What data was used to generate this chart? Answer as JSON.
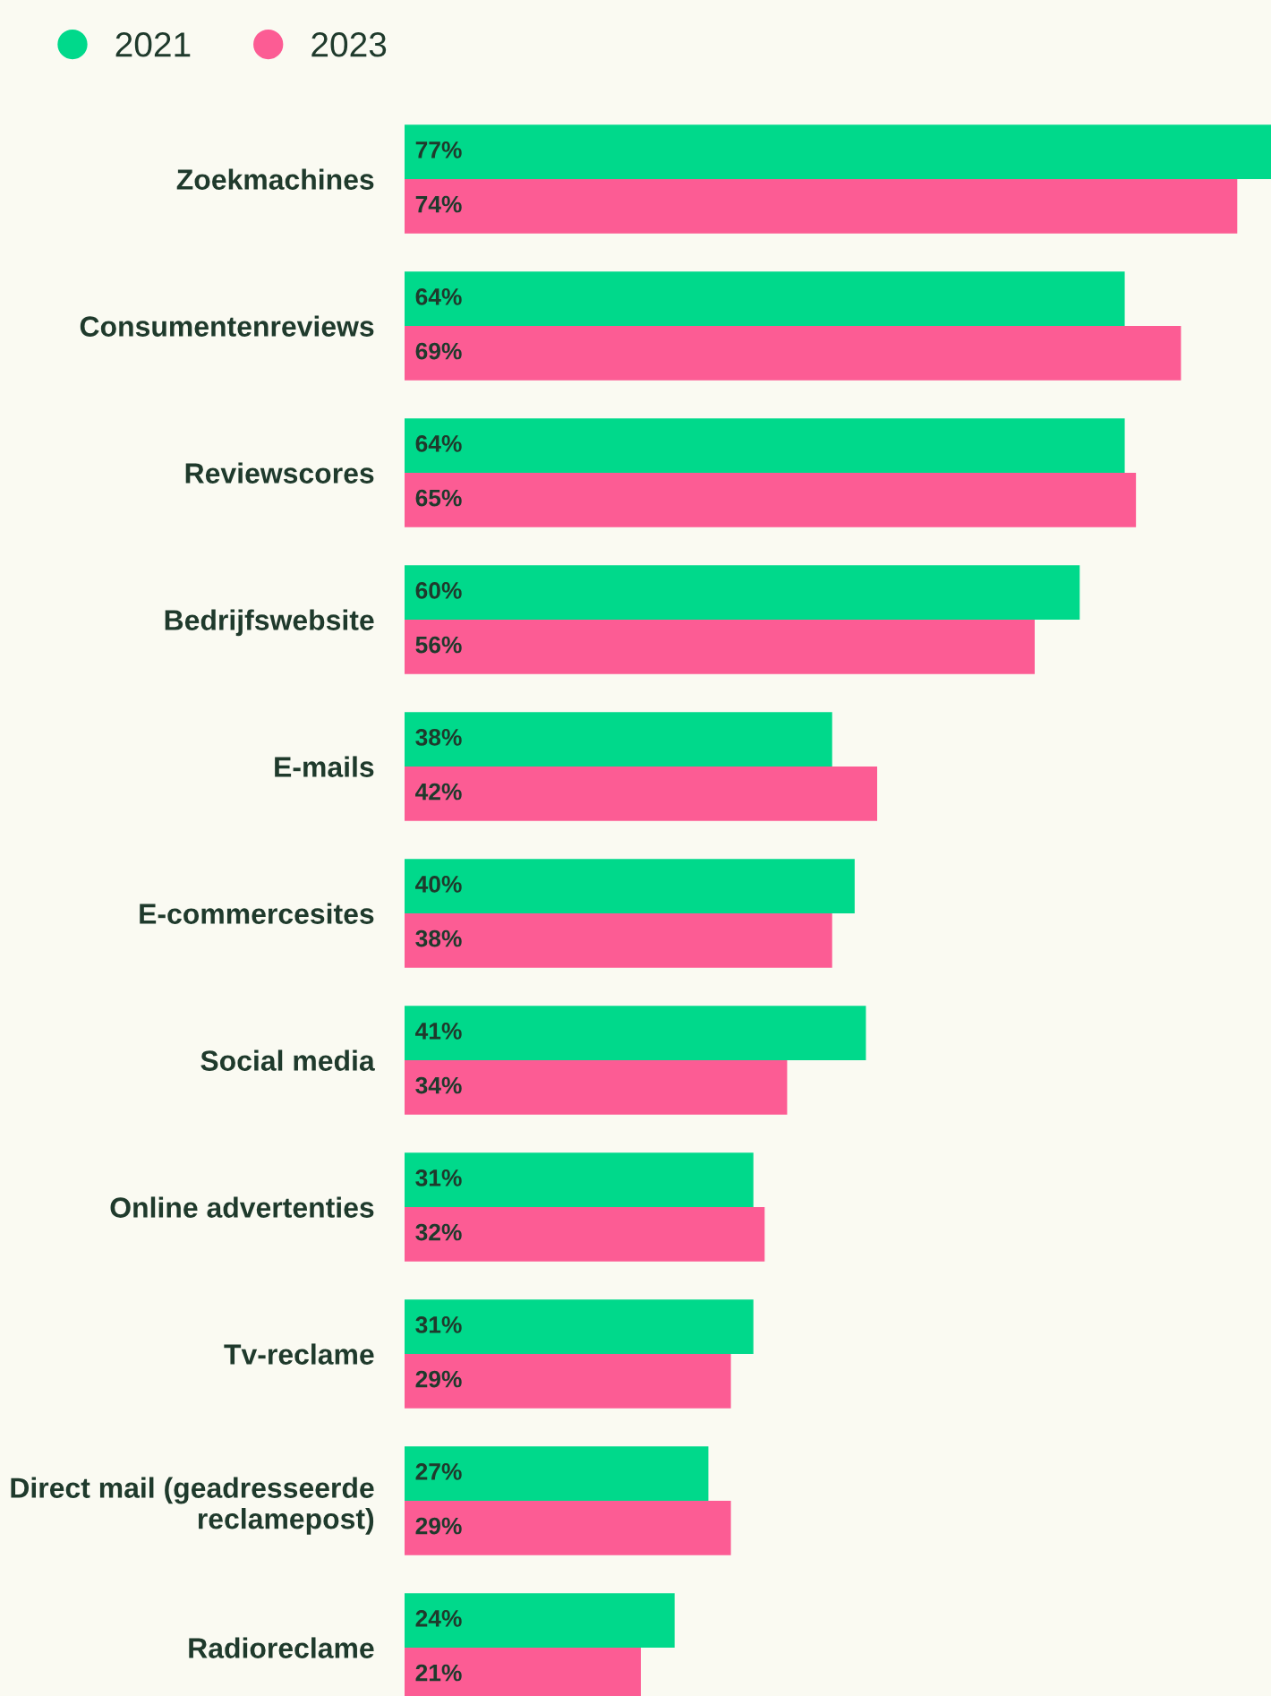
{
  "chart_data": {
    "type": "bar",
    "orientation": "horizontal",
    "legend": "top left",
    "grid": false,
    "tick_labels": "y",
    "categories": [
      "Zoekmachines",
      "Consumentenreviews",
      "Reviewscores",
      "Bedrijfswebsite",
      "E-mails",
      "E-commercesites",
      "Social media",
      "Online advertenties",
      "Tv-reclame",
      "Direct mail (geadresseerde\nreclamepost)",
      "Radioreclame"
    ],
    "series": [
      {
        "name": "2021",
        "color": "#00d98b",
        "values": [
          77,
          64,
          64,
          60,
          38,
          40,
          41,
          31,
          31,
          27,
          24
        ],
        "value_labels": [
          "77%",
          "64%",
          "64%",
          "60%",
          "38%",
          "40%",
          "41%",
          "31%",
          "31%",
          "27%",
          "24%"
        ]
      },
      {
        "name": "2023",
        "color": "#fc5c94",
        "values": [
          74,
          69,
          65,
          56,
          42,
          38,
          34,
          32,
          29,
          29,
          21
        ],
        "value_labels": [
          "74%",
          "69%",
          "65%",
          "56%",
          "42%",
          "38%",
          "34%",
          "32%",
          "29%",
          "29%",
          "21%"
        ]
      }
    ]
  }
}
